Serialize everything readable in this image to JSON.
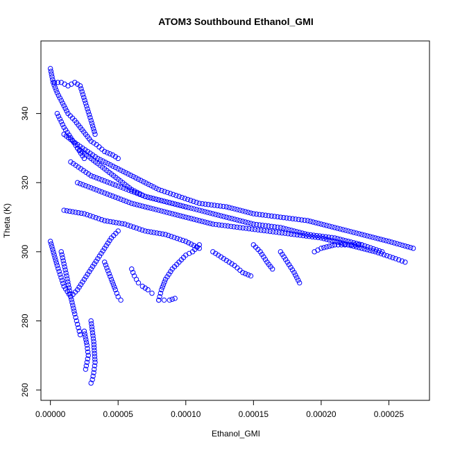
{
  "chart_data": {
    "type": "scatter",
    "title": "ATOM3 Southbound Ethanol_GMI",
    "xlabel": "Ethanol_GMI",
    "ylabel": "Theta (K)",
    "xlim": [
      -7e-06,
      0.00028
    ],
    "ylim": [
      257,
      361
    ],
    "xticks": [
      "0.00000",
      "0.00005",
      "0.00010",
      "0.00015",
      "0.00020",
      "0.00025"
    ],
    "xtick_values": [
      0,
      5e-05,
      0.0001,
      0.00015,
      0.0002,
      0.00025
    ],
    "yticks": [
      "260",
      "280",
      "300",
      "320",
      "340"
    ],
    "ytick_values": [
      260,
      280,
      300,
      320,
      340
    ],
    "marker": "open-circle",
    "color": "#0000ff",
    "grid": false,
    "series": [
      {
        "x": [
          0,
          2e-06,
          5e-06,
          9e-06,
          1.3e-05,
          1.8e-05,
          2.2e-05,
          2.6e-05,
          3e-05,
          3.4e-05,
          4e-05,
          4.6e-05,
          5e-05
        ],
        "y": [
          353,
          349,
          346,
          343,
          340,
          338,
          336,
          334,
          332,
          331,
          329,
          328,
          327
        ]
      },
      {
        "x": [
          3e-06,
          8e-06,
          1.3e-05,
          1.8e-05,
          2.2e-05,
          2.6e-05,
          3e-05,
          3.3e-05
        ],
        "y": [
          349,
          349,
          348,
          349,
          348,
          343,
          338,
          334
        ]
      },
      {
        "x": [
          1e-05,
          2e-05,
          3.5e-05,
          5e-05,
          6.5e-05,
          8e-05,
          9.5e-05,
          0.00011,
          0.00013,
          0.00015,
          0.00017,
          0.00019,
          0.00021,
          0.00023,
          0.00025,
          0.000268
        ],
        "y": [
          334,
          331,
          327,
          324,
          321,
          318,
          316,
          314,
          313,
          311,
          310,
          309,
          307,
          305,
          303,
          301
        ]
      },
      {
        "x": [
          1.5e-05,
          3e-05,
          5e-05,
          7e-05,
          9e-05,
          0.00011,
          0.00013,
          0.00015,
          0.00017,
          0.00019,
          0.00021,
          0.00023,
          0.000245
        ],
        "y": [
          326,
          322,
          319,
          316,
          314,
          312,
          310,
          308,
          307,
          305,
          304,
          302,
          300
        ]
      },
      {
        "x": [
          2e-05,
          4e-05,
          6e-05,
          8e-05,
          0.0001,
          0.00012,
          0.00014,
          0.00016,
          0.00018,
          0.0002,
          0.00022,
          0.00024,
          0.000255,
          0.000262
        ],
        "y": [
          320,
          317,
          314,
          312,
          310,
          308,
          307,
          306,
          305,
          304,
          302,
          300,
          298,
          297
        ]
      },
      {
        "x": [
          1e-05,
          2.5e-05,
          4e-05,
          5.5e-05,
          7e-05,
          8.5e-05,
          0.0001,
          0.00011
        ],
        "y": [
          312,
          311,
          309,
          308,
          306,
          305,
          303,
          301
        ]
      },
      {
        "x": [
          8e-05,
          8.2e-05,
          8.5e-05,
          9e-05,
          9.5e-05,
          0.0001,
          0.000105,
          0.00011
        ],
        "y": [
          286,
          289,
          292,
          295,
          297,
          299,
          300,
          302
        ]
      },
      {
        "x": [
          8e-05,
          8.4e-05,
          8.8e-05,
          9.2e-05
        ],
        "y": [
          286,
          286,
          286,
          286.5
        ]
      },
      {
        "x": [
          0.00012,
          0.000128,
          0.000136,
          0.000142,
          0.000148
        ],
        "y": [
          300,
          298,
          296,
          294,
          293
        ]
      },
      {
        "x": [
          0.00015,
          0.000155,
          0.00016,
          0.000164
        ],
        "y": [
          302,
          300,
          297,
          295
        ]
      },
      {
        "x": [
          0.00017,
          0.000175,
          0.00018,
          0.000184
        ],
        "y": [
          300,
          297,
          294,
          291
        ]
      },
      {
        "x": [
          0.000195,
          0.0002,
          0.00021,
          0.00022,
          0.00023
        ],
        "y": [
          300,
          301,
          302,
          302,
          302
        ]
      },
      {
        "x": [
          6e-05,
          6.2e-05,
          6.5e-05,
          6.8e-05,
          7.2e-05,
          7.5e-05
        ],
        "y": [
          295,
          293,
          291,
          290,
          289,
          288
        ]
      },
      {
        "x": [
          5e-05,
          4.5e-05,
          4e-05,
          3.5e-05,
          3e-05,
          2.5e-05,
          2e-05,
          1.5e-05,
          1e-05,
          5e-06,
          0
        ],
        "y": [
          306,
          304,
          301,
          298,
          295,
          292,
          289,
          287,
          290,
          296,
          303
        ]
      },
      {
        "x": [
          3e-05,
          3.2e-05,
          3.3e-05,
          3.2e-05,
          3.1e-05,
          3e-05
        ],
        "y": [
          280,
          274,
          268,
          265,
          263,
          262
        ]
      },
      {
        "x": [
          2.5e-05,
          2.7e-05,
          2.8e-05,
          2.7e-05,
          2.6e-05
        ],
        "y": [
          277,
          273,
          270,
          268,
          266
        ]
      },
      {
        "x": [
          8e-06,
          1.2e-05,
          1.5e-05,
          1.8e-05,
          2e-05,
          2.2e-05
        ],
        "y": [
          300,
          293,
          287,
          282,
          279,
          276
        ]
      },
      {
        "x": [
          4e-05,
          4.5e-05,
          4.8e-05,
          5e-05,
          5.2e-05
        ],
        "y": [
          297,
          292,
          289,
          287,
          286
        ]
      },
      {
        "x": [
          5e-06,
          1e-05,
          1.5e-05,
          2e-05,
          2.5e-05
        ],
        "y": [
          340,
          336,
          333,
          330,
          327
        ]
      },
      {
        "x": [
          2e-05,
          3e-05,
          4e-05,
          5e-05,
          6e-05,
          7e-05,
          8e-05,
          9e-05,
          0.0001
        ],
        "y": [
          330,
          327,
          324,
          321,
          318,
          316,
          315,
          314,
          313
        ]
      }
    ]
  }
}
